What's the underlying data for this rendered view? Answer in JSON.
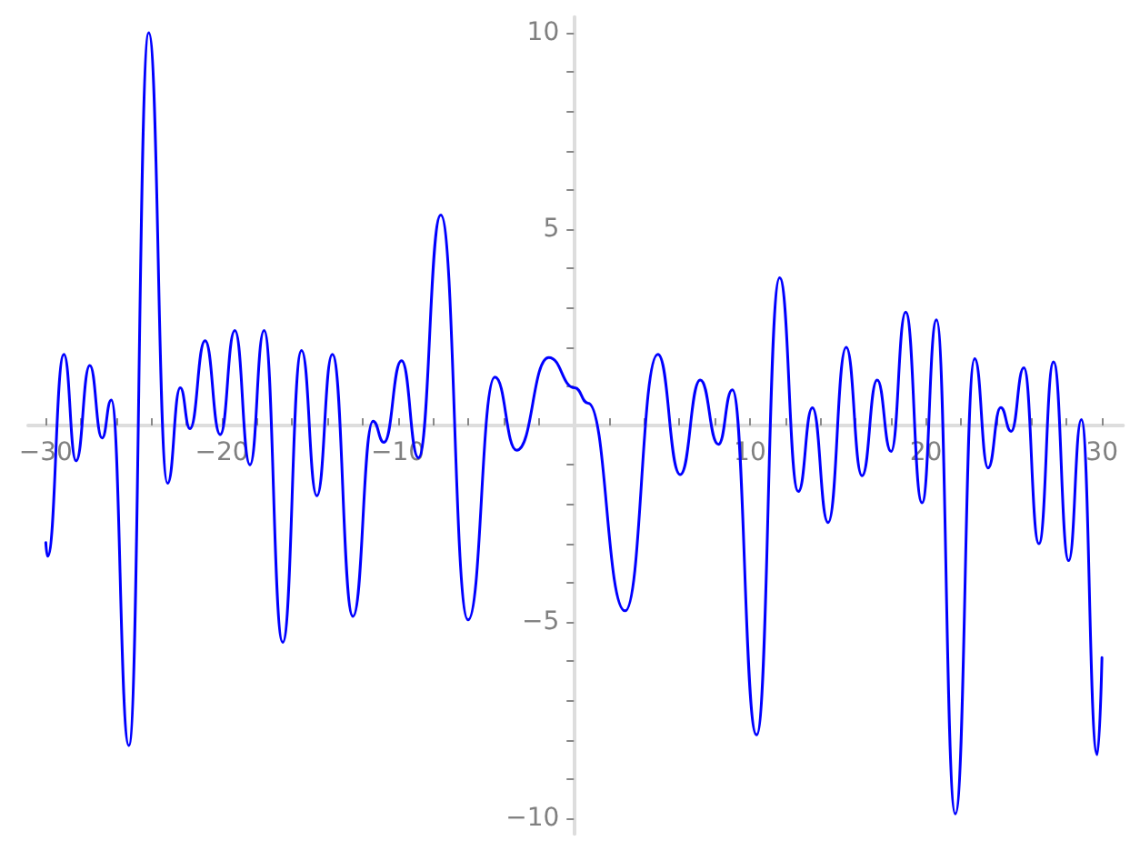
{
  "chart_data": {
    "type": "line",
    "grid": false,
    "marker": "none",
    "line_style": "solid",
    "xlim": [
      -31,
      31.2
    ],
    "ylim": [
      -10.4,
      10.4
    ],
    "xticks": [
      {
        "value": -30,
        "label": "−30"
      },
      {
        "value": -28,
        "label": null
      },
      {
        "value": -26,
        "label": null
      },
      {
        "value": -24,
        "label": null
      },
      {
        "value": -22,
        "label": null
      },
      {
        "value": -20,
        "label": "−20"
      },
      {
        "value": -18,
        "label": null
      },
      {
        "value": -16,
        "label": null
      },
      {
        "value": -14,
        "label": null
      },
      {
        "value": -12,
        "label": null
      },
      {
        "value": -10,
        "label": "−10"
      },
      {
        "value": -8,
        "label": null
      },
      {
        "value": -6,
        "label": null
      },
      {
        "value": -4,
        "label": null
      },
      {
        "value": -2,
        "label": null
      },
      {
        "value": 2,
        "label": null
      },
      {
        "value": 4,
        "label": null
      },
      {
        "value": 6,
        "label": null
      },
      {
        "value": 8,
        "label": null
      },
      10,
      {
        "value": 12,
        "label": null
      },
      {
        "value": 14,
        "label": null
      },
      {
        "value": 16,
        "label": null
      },
      {
        "value": 18,
        "label": null
      },
      20,
      {
        "value": 22,
        "label": null
      },
      {
        "value": 24,
        "label": null
      },
      {
        "value": 26,
        "label": null
      },
      {
        "value": 28,
        "label": null
      },
      30
    ],
    "yticks": [
      {
        "value": -10,
        "label": "−10"
      },
      {
        "value": -9,
        "label": null
      },
      {
        "value": -8,
        "label": null
      },
      {
        "value": -7,
        "label": null
      },
      {
        "value": -6,
        "label": null
      },
      {
        "value": -5,
        "label": "−5"
      },
      {
        "value": -4,
        "label": null
      },
      {
        "value": -3,
        "label": null
      },
      {
        "value": -2,
        "label": null
      },
      {
        "value": -1,
        "label": null
      },
      {
        "value": 1,
        "label": null
      },
      {
        "value": 2,
        "label": null
      },
      {
        "value": 3,
        "label": null
      },
      {
        "value": 4,
        "label": null
      },
      5,
      {
        "value": 6,
        "label": null
      },
      {
        "value": 7,
        "label": null
      },
      {
        "value": 8,
        "label": null
      },
      {
        "value": 9,
        "label": null
      },
      10
    ],
    "series": [
      {
        "color": "#0000ff",
        "x": [
          -30.0,
          -29.9,
          -28.97,
          -28.28,
          -27.5,
          -26.8,
          -26.28,
          -25.28,
          -24.15,
          -23.08,
          -22.36,
          -21.81,
          -20.95,
          -20.09,
          -19.26,
          -18.4,
          -17.6,
          -16.54,
          -15.47,
          -14.6,
          -13.72,
          -12.55,
          -11.41,
          -10.79,
          -9.79,
          -8.83,
          -7.56,
          -6.01,
          -4.49,
          -3.25,
          -1.43,
          0.05,
          0.81,
          2.91,
          4.77,
          6.04,
          7.18,
          8.21,
          9.0,
          10.38,
          11.69,
          12.75,
          13.55,
          14.44,
          15.47,
          16.37,
          17.23,
          18.02,
          18.85,
          19.78,
          20.6,
          21.67,
          22.77,
          23.53,
          24.25,
          24.84,
          25.56,
          26.42,
          27.25,
          28.11,
          28.83,
          29.73,
          30.0
        ],
        "values": [
          -2.98,
          -3.33,
          1.81,
          -0.9,
          1.53,
          -0.32,
          0.65,
          -8.15,
          10.0,
          -1.47,
          0.96,
          -0.08,
          2.16,
          -0.23,
          2.42,
          -1.0,
          2.42,
          -5.52,
          1.91,
          -1.79,
          1.81,
          -4.86,
          0.11,
          -0.43,
          1.65,
          -0.82,
          5.36,
          -4.95,
          1.23,
          -0.63,
          1.73,
          0.96,
          0.57,
          -4.72,
          1.81,
          -1.25,
          1.16,
          -0.48,
          0.91,
          -7.88,
          3.76,
          -1.68,
          0.45,
          -2.47,
          1.99,
          -1.28,
          1.16,
          -0.66,
          2.89,
          -1.97,
          2.69,
          -9.89,
          1.7,
          -1.08,
          0.46,
          -0.15,
          1.47,
          -3.01,
          1.62,
          -3.44,
          0.15,
          -8.38,
          -5.91
        ]
      }
    ]
  }
}
